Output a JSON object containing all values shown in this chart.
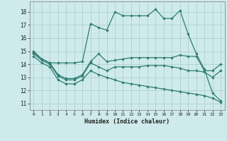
{
  "xlabel": "Humidex (Indice chaleur)",
  "bg_color": "#ceeaea",
  "grid_color": "#a8cccc",
  "line_color": "#2e7d72",
  "xlim": [
    -0.5,
    23.5
  ],
  "ylim": [
    10.5,
    18.8
  ],
  "yticks": [
    11,
    12,
    13,
    14,
    15,
    16,
    17,
    18
  ],
  "xticks": [
    0,
    1,
    2,
    3,
    4,
    5,
    6,
    7,
    8,
    9,
    10,
    11,
    12,
    13,
    14,
    15,
    16,
    17,
    18,
    19,
    20,
    21,
    22,
    23
  ],
  "line1_x": [
    0,
    1,
    2,
    3,
    4,
    5,
    6,
    7,
    8,
    9,
    10,
    11,
    12,
    13,
    14,
    15,
    16,
    17,
    18,
    19,
    20,
    21,
    22,
    23
  ],
  "line1_y": [
    15.0,
    14.4,
    14.1,
    14.1,
    14.1,
    14.1,
    14.2,
    17.1,
    16.8,
    16.6,
    18.0,
    17.7,
    17.7,
    17.7,
    17.7,
    18.2,
    17.5,
    17.5,
    18.1,
    16.3,
    14.8,
    13.6,
    11.8,
    11.2
  ],
  "line2_x": [
    0,
    1,
    2,
    3,
    4,
    5,
    6,
    7,
    8,
    9,
    10,
    11,
    12,
    13,
    14,
    15,
    16,
    17,
    18,
    19,
    20,
    21,
    22,
    23
  ],
  "line2_y": [
    14.9,
    14.4,
    14.1,
    13.2,
    12.9,
    12.9,
    13.2,
    14.2,
    14.8,
    14.2,
    14.3,
    14.4,
    14.5,
    14.5,
    14.5,
    14.5,
    14.5,
    14.5,
    14.7,
    14.6,
    14.6,
    13.5,
    13.5,
    14.0
  ],
  "line3_x": [
    0,
    1,
    2,
    3,
    4,
    5,
    6,
    7,
    8,
    9,
    10,
    11,
    12,
    13,
    14,
    15,
    16,
    17,
    18,
    19,
    20,
    21,
    22,
    23
  ],
  "line3_y": [
    14.8,
    14.3,
    14.0,
    13.1,
    12.8,
    12.8,
    13.1,
    14.1,
    13.8,
    13.5,
    13.8,
    13.8,
    13.8,
    13.8,
    13.9,
    13.9,
    13.9,
    13.8,
    13.7,
    13.5,
    13.5,
    13.4,
    13.0,
    13.5
  ],
  "line4_x": [
    0,
    1,
    2,
    3,
    4,
    5,
    6,
    7,
    8,
    9,
    10,
    11,
    12,
    13,
    14,
    15,
    16,
    17,
    18,
    19,
    20,
    21,
    22,
    23
  ],
  "line4_y": [
    14.6,
    14.1,
    13.8,
    12.8,
    12.5,
    12.5,
    12.8,
    13.5,
    13.2,
    13.0,
    12.8,
    12.6,
    12.5,
    12.4,
    12.3,
    12.2,
    12.1,
    12.0,
    11.9,
    11.8,
    11.7,
    11.6,
    11.4,
    11.1
  ]
}
